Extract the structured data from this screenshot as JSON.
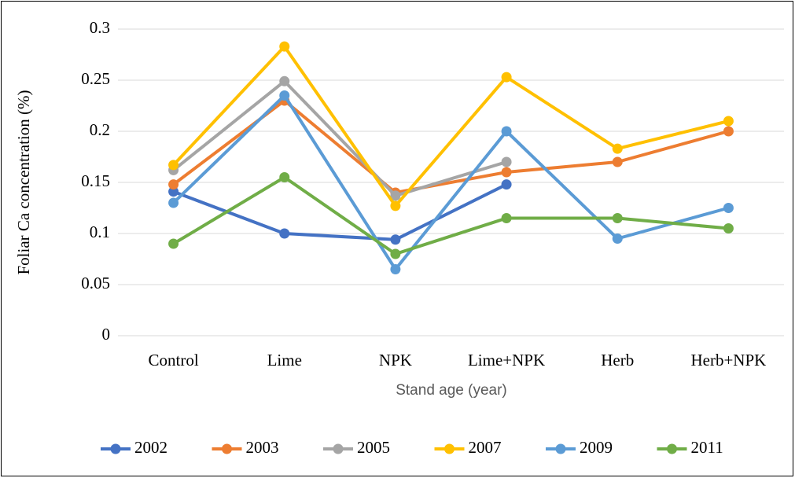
{
  "chart_data": {
    "type": "line",
    "y_label": "Foliar Ca concentration (%)",
    "x_label": "Stand age (year)",
    "categories": [
      "Control",
      "Lime",
      "NPK",
      "Lime+NPK",
      "Herb",
      "Herb+NPK"
    ],
    "series": [
      {
        "name": "2002",
        "color": "#4472c4",
        "values": [
          0.141,
          0.1,
          0.094,
          0.148,
          null,
          null
        ]
      },
      {
        "name": "2003",
        "color": "#ed7d31",
        "values": [
          0.148,
          0.23,
          0.14,
          0.16,
          0.17,
          0.2
        ]
      },
      {
        "name": "2005",
        "color": "#a5a5a5",
        "values": [
          0.162,
          0.249,
          0.137,
          0.17,
          null,
          null
        ]
      },
      {
        "name": "2007",
        "color": "#ffc000",
        "values": [
          0.167,
          0.283,
          0.127,
          0.253,
          0.183,
          0.21
        ]
      },
      {
        "name": "2009",
        "color": "#5b9bd5",
        "values": [
          0.13,
          0.235,
          0.065,
          0.2,
          0.095,
          0.125
        ]
      },
      {
        "name": "2011",
        "color": "#70ad47",
        "values": [
          0.09,
          0.155,
          0.08,
          0.115,
          0.115,
          0.105
        ]
      }
    ],
    "ylim": [
      0,
      0.3
    ],
    "yticks": [
      0,
      0.05,
      0.1,
      0.15,
      0.2,
      0.25,
      0.3
    ],
    "grid": true,
    "legend": "bottom"
  }
}
